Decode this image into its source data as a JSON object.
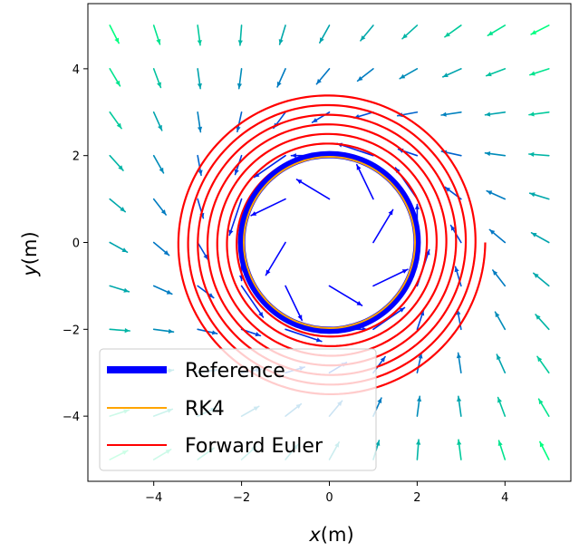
{
  "chart_data": {
    "type": "line",
    "xlabel_var": "x",
    "xlabel_unit": "(m)",
    "ylabel_var": "y",
    "ylabel_unit": "(m)",
    "xlim": [
      -5.5,
      5.5
    ],
    "ylim": [
      -5.5,
      5.5
    ],
    "xticks": [
      -4,
      -2,
      0,
      2,
      4
    ],
    "yticks": [
      -4,
      -2,
      0,
      2,
      4
    ],
    "xtick_labels": [
      "−4",
      "−2",
      "0",
      "2",
      "4"
    ],
    "ytick_labels": [
      "−4",
      "−2",
      "0",
      "2",
      "4"
    ],
    "grid": false,
    "legend_position": "lower-left",
    "series": [
      {
        "name": "Reference",
        "color": "#0000ff",
        "shape": "circle",
        "radius": 2.0,
        "turns": 1,
        "growth_per_turn": 0.0
      },
      {
        "name": "RK4",
        "color": "#ffa500",
        "shape": "circle",
        "radius": 1.95,
        "turns": 1,
        "growth_per_turn": 0.0
      },
      {
        "name": "Forward Euler",
        "color": "#ff0000",
        "shape": "spiral",
        "start_radius": 2.0,
        "end_radius": 3.55,
        "turns": 7
      }
    ],
    "vector_field": {
      "type": "quiver",
      "grid_x": [
        -5,
        -4,
        -3,
        -2,
        -1,
        0,
        1,
        2,
        3,
        4,
        5
      ],
      "grid_y": [
        -5,
        -4,
        -3,
        -2,
        -1,
        0,
        1,
        2,
        3,
        4,
        5
      ],
      "field": "rotation with radial pull toward radius 2",
      "colormap": "winter",
      "colors": [
        "#0000ff",
        "#00ff80"
      ]
    }
  }
}
